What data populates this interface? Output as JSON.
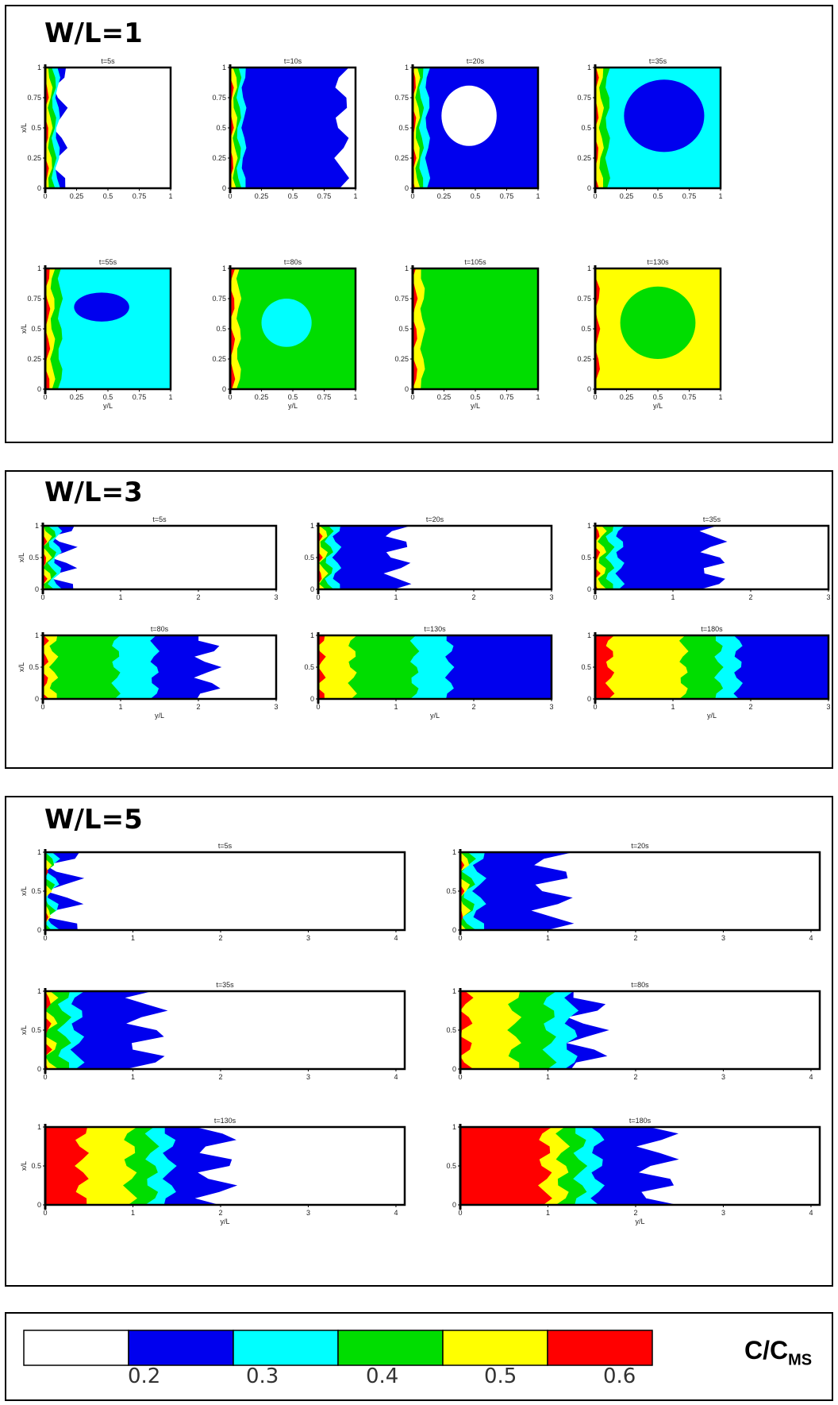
{
  "panels": [
    {
      "id": "wl1",
      "title": "W/L=1"
    },
    {
      "id": "wl3",
      "title": "W/L=3"
    },
    {
      "id": "wl5",
      "title": "W/L=5"
    }
  ],
  "colorbar": {
    "ticks": [
      "0.2",
      "0.3",
      "0.4",
      "0.5",
      "0.6"
    ],
    "label_main": "C/C",
    "label_sub": "MS",
    "colors": [
      "#ffffff",
      "#0000ee",
      "#00ffff",
      "#00dd00",
      "#ffff00",
      "#ff0000"
    ]
  },
  "chart_data": [
    {
      "type": "heatmap",
      "group": "W/L=1",
      "xlabel": "y/L",
      "ylabel": "x/L",
      "xlim": [
        0,
        1
      ],
      "ylim": [
        0,
        1
      ],
      "xticks": [
        "0",
        "0.25",
        "0.5",
        "0.75",
        "1"
      ],
      "yticks": [
        "0",
        "0.25",
        "0.5",
        "0.75",
        "1"
      ],
      "subplots": [
        {
          "title": "t=5s",
          "fronts": [
            0.03,
            0.06,
            0.09,
            0.12,
            0.18
          ],
          "base": 0,
          "core": null
        },
        {
          "title": "t=10s",
          "fronts": [
            0.03,
            0.06,
            0.09,
            0.13,
            0.95
          ],
          "base": 0,
          "core": null
        },
        {
          "title": "t=20s",
          "fronts": [
            0.03,
            0.06,
            0.09,
            0.14,
            1.0
          ],
          "base": 2,
          "core": {
            "level": 0,
            "cx": 0.45,
            "cy": 0.6,
            "rx": 0.22,
            "ry": 0.25
          }
        },
        {
          "title": "t=35s",
          "fronts": [
            0.03,
            0.07,
            0.12,
            1.0,
            1.0
          ],
          "base": 2,
          "core": {
            "level": 1,
            "cx": 0.55,
            "cy": 0.6,
            "rx": 0.32,
            "ry": 0.3
          }
        },
        {
          "title": "t=55s",
          "fronts": [
            0.04,
            0.08,
            0.14,
            1.0,
            1.0
          ],
          "base": 2,
          "core": {
            "level": 1,
            "cx": 0.45,
            "cy": 0.68,
            "rx": 0.22,
            "ry": 0.12
          }
        },
        {
          "title": "t=80s",
          "fronts": [
            0.04,
            0.09,
            1.0,
            1.0,
            1.0
          ],
          "base": 3,
          "core": {
            "level": 2,
            "cx": 0.45,
            "cy": 0.55,
            "rx": 0.2,
            "ry": 0.2
          }
        },
        {
          "title": "t=105s",
          "fronts": [
            0.04,
            0.1,
            1.0,
            1.0,
            1.0
          ],
          "base": 4,
          "core": {
            "level": 3,
            "cx": 0.5,
            "cy": 0.55,
            "rx": 0.32,
            "ry": 0.35
          }
        },
        {
          "title": "t=130s",
          "fronts": [
            0.04,
            1.0,
            1.0,
            1.0,
            1.0
          ],
          "base": 4,
          "core": {
            "level": 3,
            "cx": 0.5,
            "cy": 0.55,
            "rx": 0.3,
            "ry": 0.3
          }
        }
      ]
    },
    {
      "type": "heatmap",
      "group": "W/L=3",
      "xlabel": "y/L",
      "ylabel": "x/L",
      "xlim": [
        0,
        3
      ],
      "ylim": [
        0,
        1
      ],
      "xticks": [
        "0",
        "1",
        "2",
        "3"
      ],
      "yticks": [
        "0",
        "0.5",
        "1"
      ],
      "subplots": [
        {
          "title": "t=5s",
          "fronts": [
            0.06,
            0.12,
            0.18,
            0.25,
            0.45
          ],
          "base": 0,
          "core": null
        },
        {
          "title": "t=20s",
          "fronts": [
            0.06,
            0.13,
            0.2,
            0.3,
            1.2
          ],
          "base": 0,
          "core": null
        },
        {
          "title": "t=35s",
          "fronts": [
            0.07,
            0.15,
            0.25,
            0.38,
            1.7
          ],
          "base": 0,
          "core": null
        },
        {
          "title": "t=80s",
          "fronts": [
            0.08,
            0.2,
            1.0,
            1.5,
            2.3
          ],
          "base": 0,
          "core": null
        },
        {
          "title": "t=130s",
          "fronts": [
            0.1,
            0.5,
            1.3,
            1.75,
            3.0
          ],
          "base": 0,
          "core": null
        },
        {
          "title": "t=180s",
          "fronts": [
            0.25,
            1.2,
            1.65,
            1.9,
            3.0
          ],
          "base": 0,
          "core": null
        }
      ]
    },
    {
      "type": "heatmap",
      "group": "W/L=5",
      "xlabel": "y/L",
      "ylabel": "x/L",
      "xlim": [
        0,
        4.1
      ],
      "ylim": [
        0,
        1
      ],
      "xticks": [
        "0",
        "1",
        "2",
        "3",
        "4"
      ],
      "yticks": [
        "0",
        "0.5",
        "1"
      ],
      "subplots": [
        {
          "title": "t=5s",
          "fronts": [
            0.04,
            0.08,
            0.12,
            0.17,
            0.45
          ],
          "base": 0,
          "core": null
        },
        {
          "title": "t=20s",
          "fronts": [
            0.05,
            0.12,
            0.18,
            0.3,
            1.3
          ],
          "base": 0,
          "core": null
        },
        {
          "title": "t=35s",
          "fronts": [
            0.08,
            0.15,
            0.3,
            0.45,
            1.4
          ],
          "base": 0,
          "core": null
        },
        {
          "title": "t=80s",
          "fronts": [
            0.15,
            0.7,
            1.1,
            1.35,
            1.7
          ],
          "base": 0,
          "core": null
        },
        {
          "title": "t=130s",
          "fronts": [
            0.5,
            1.05,
            1.3,
            1.5,
            2.2
          ],
          "base": 0,
          "core": null
        },
        {
          "title": "t=180s",
          "fronts": [
            1.05,
            1.25,
            1.45,
            1.65,
            2.5
          ],
          "base": 0,
          "core": null
        }
      ]
    }
  ]
}
